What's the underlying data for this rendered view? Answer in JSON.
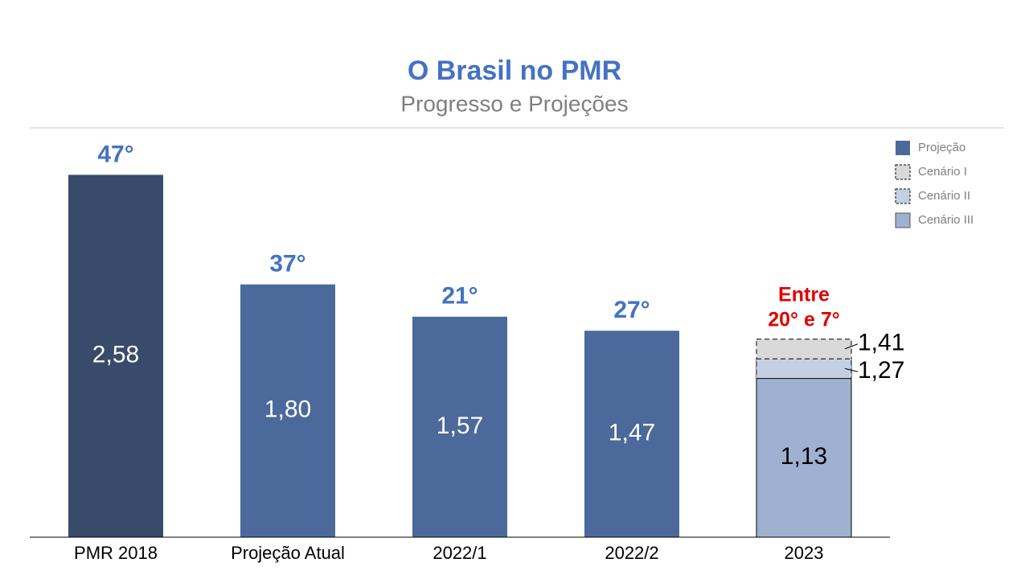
{
  "chart_data": {
    "type": "bar",
    "title": "O Brasil no PMR",
    "subtitle": "Progresso e Projeções",
    "categories": [
      "PMR 2018",
      "Projeção Atual",
      "2022/1",
      "2022/2",
      "2023"
    ],
    "series": [
      {
        "name": "Projeção",
        "color": "#4b6a9b",
        "colors": [
          "#384b6b",
          "#4b6a9b",
          "#4b6a9b",
          "#4b6a9b",
          "#4b6a9b"
        ],
        "border": "solid",
        "label_position": "inside",
        "label_color": "#ffffff",
        "values": [
          2.58,
          1.8,
          1.57,
          1.47,
          null
        ],
        "value_labels": [
          "2,58",
          "1,80",
          "1,57",
          "1,47",
          null
        ]
      },
      {
        "name": "Cenário I",
        "color": "#d9d9d9",
        "border": "dashed",
        "label_position": "right",
        "label_color": "#000000",
        "values": [
          null,
          null,
          null,
          null,
          1.41
        ],
        "value_labels": [
          null,
          null,
          null,
          null,
          "1,41"
        ]
      },
      {
        "name": "Cenário II",
        "color": "#c5cfe4",
        "border": "dashed",
        "label_position": "right",
        "label_color": "#000000",
        "values": [
          null,
          null,
          null,
          null,
          1.27
        ],
        "value_labels": [
          null,
          null,
          null,
          null,
          "1,27"
        ]
      },
      {
        "name": "Cenário III",
        "color": "#9fb1d0",
        "border": "solid",
        "label_position": "inside",
        "label_color": "#000000",
        "values": [
          null,
          null,
          null,
          null,
          1.13
        ],
        "value_labels": [
          null,
          null,
          null,
          null,
          "1,13"
        ]
      }
    ],
    "ranks": [
      "47°",
      "37°",
      "21°",
      "27°",
      null
    ],
    "rank_color": "#4472c4",
    "range_label": [
      "Entre",
      "20° e 7°"
    ],
    "range_color": "#e00000",
    "ylim": [
      0,
      2.8
    ],
    "legend": "top-right"
  }
}
